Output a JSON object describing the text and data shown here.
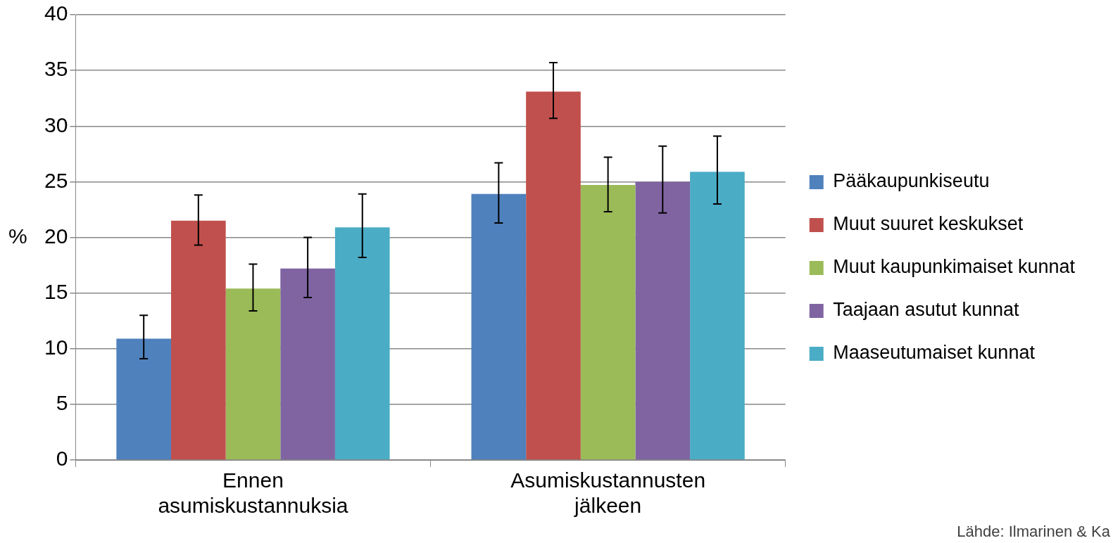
{
  "chart_data": {
    "type": "bar",
    "ylabel": "%",
    "categories": [
      "Ennen asumiskustannuksia",
      "Asumiskustannusten jälkeen"
    ],
    "series": [
      {
        "name": "Pääkaupunkiseutu",
        "color": "#4f81bd",
        "values": [
          10.9,
          23.9
        ],
        "errors": [
          [
            9.1,
            13.0
          ],
          [
            21.3,
            26.7
          ]
        ]
      },
      {
        "name": "Muut suuret keskukset",
        "color": "#c0504d",
        "values": [
          21.5,
          33.1
        ],
        "errors": [
          [
            19.3,
            23.8
          ],
          [
            30.7,
            35.7
          ]
        ]
      },
      {
        "name": "Muut kaupunkimaiset kunnat",
        "color": "#9bbb59",
        "values": [
          15.4,
          24.7
        ],
        "errors": [
          [
            13.4,
            17.6
          ],
          [
            22.3,
            27.2
          ]
        ]
      },
      {
        "name": "Taajaan asutut kunnat",
        "color": "#8064a2",
        "values": [
          17.2,
          25.0
        ],
        "errors": [
          [
            14.6,
            20.0
          ],
          [
            22.2,
            28.2
          ]
        ]
      },
      {
        "name": "Maaseutumaiset kunnat",
        "color": "#4bacc6",
        "values": [
          20.9,
          25.9
        ],
        "errors": [
          [
            18.2,
            23.9
          ],
          [
            23.0,
            29.1
          ]
        ]
      }
    ],
    "ylim": [
      0,
      40
    ],
    "yticks": [
      0,
      5,
      10,
      15,
      20,
      25,
      30,
      35,
      40
    ],
    "grid": "y",
    "legend": "right",
    "annotations": [
      "Lähde: Ilmarinen & Ka"
    ]
  }
}
